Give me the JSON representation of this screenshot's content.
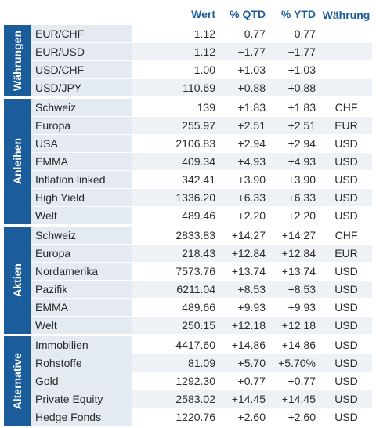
{
  "header": {
    "wert": "Wert",
    "qtd": "% QTD",
    "ytd": "% YTD",
    "waehrung": "Währung"
  },
  "groups": [
    {
      "label": "Währungen",
      "rows": [
        {
          "name": "EUR/CHF",
          "wert": "1.12",
          "qtd": "−0.77",
          "ytd": "−0.77",
          "cur": ""
        },
        {
          "name": "EUR/USD",
          "wert": "1.12",
          "qtd": "−1.77",
          "ytd": "−1.77",
          "cur": ""
        },
        {
          "name": "USD/CHF",
          "wert": "1.00",
          "qtd": "+1.03",
          "ytd": "+1.03",
          "cur": ""
        },
        {
          "name": "USD/JPY",
          "wert": "110.69",
          "qtd": "+0.88",
          "ytd": "+0.88",
          "cur": ""
        }
      ]
    },
    {
      "label": "Anleihen",
      "rows": [
        {
          "name": "Schweiz",
          "wert": "139",
          "qtd": "+1.83",
          "ytd": "+1.83",
          "cur": "CHF"
        },
        {
          "name": "Europa",
          "wert": "255.97",
          "qtd": "+2.51",
          "ytd": "+2.51",
          "cur": "EUR"
        },
        {
          "name": "USA",
          "wert": "2106.83",
          "qtd": "+2.94",
          "ytd": "+2.94",
          "cur": "USD"
        },
        {
          "name": "EMMA",
          "wert": "409.34",
          "qtd": "+4.93",
          "ytd": "+4.93",
          "cur": "USD"
        },
        {
          "name": "Inflation linked",
          "wert": "342.41",
          "qtd": "+3.90",
          "ytd": "+3.90",
          "cur": "USD"
        },
        {
          "name": "High Yield",
          "wert": "1336.20",
          "qtd": "+6.33",
          "ytd": "+6.33",
          "cur": "USD"
        },
        {
          "name": "Welt",
          "wert": "489.46",
          "qtd": "+2.20",
          "ytd": "+2.20",
          "cur": "USD"
        }
      ]
    },
    {
      "label": "Aktien",
      "rows": [
        {
          "name": "Schweiz",
          "wert": "2833.83",
          "qtd": "+14.27",
          "ytd": "+14.27",
          "cur": "CHF"
        },
        {
          "name": "Europa",
          "wert": "218.43",
          "qtd": "+12.84",
          "ytd": "+12.84",
          "cur": "EUR"
        },
        {
          "name": "Nordamerika",
          "wert": "7573.76",
          "qtd": "+13.74",
          "ytd": "+13.74",
          "cur": "USD"
        },
        {
          "name": "Pazifik",
          "wert": "6211.04",
          "qtd": "+8.53",
          "ytd": "+8.53",
          "cur": "USD"
        },
        {
          "name": "EMMA",
          "wert": "489.66",
          "qtd": "+9.93",
          "ytd": "+9.93",
          "cur": "USD"
        },
        {
          "name": "Welt",
          "wert": "250.15",
          "qtd": "+12.18",
          "ytd": "+12.18",
          "cur": "USD"
        }
      ]
    },
    {
      "label": "Alternative",
      "rows": [
        {
          "name": "Immobilien",
          "wert": "4417.60",
          "qtd": "+14.86",
          "ytd": "+14.86",
          "cur": "USD"
        },
        {
          "name": "Rohstoffe",
          "wert": "81.09",
          "qtd": "+5.70",
          "ytd": "+5.70%",
          "cur": "USD"
        },
        {
          "name": "Gold",
          "wert": "1292.30",
          "qtd": "+0.77",
          "ytd": "+0.77",
          "cur": "USD"
        },
        {
          "name": "Private Equity",
          "wert": "2583.02",
          "qtd": "+14.45",
          "ytd": "+14.45",
          "cur": "USD"
        },
        {
          "name": "Hedge Fonds",
          "wert": "1220.76",
          "qtd": "+2.60",
          "ytd": "+2.60",
          "cur": "USD"
        }
      ]
    }
  ]
}
